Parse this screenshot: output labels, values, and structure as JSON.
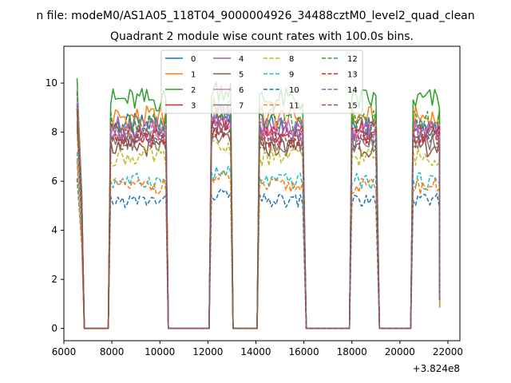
{
  "chart_data": {
    "type": "line",
    "suptitle": "n file: modeM0/AS1A05_118T04_9000004926_34488cztM0_level2_quad_clean",
    "title": "Quadrant 2 module wise count rates with 100.0s bins.",
    "xlabel": "",
    "ylabel": "",
    "x_offset_label": "+3.824e8",
    "xlim": [
      6000,
      22500
    ],
    "ylim": [
      -0.5,
      11.5
    ],
    "xticks": [
      6000,
      8000,
      10000,
      12000,
      14000,
      16000,
      18000,
      20000,
      22000
    ],
    "xtick_labels": [
      "6000",
      "8000",
      "10000",
      "12000",
      "14000",
      "16000",
      "18000",
      "20000",
      "22000"
    ],
    "yticks": [
      0,
      2,
      4,
      6,
      8,
      10
    ],
    "ytick_labels": [
      "0",
      "2",
      "4",
      "6",
      "8",
      "10"
    ],
    "legend": {
      "position": "top-center",
      "ncols": 4
    },
    "segments": [
      {
        "start": 6550,
        "end": 6750,
        "decay": true
      },
      {
        "start": 7950,
        "end": 10250
      },
      {
        "start": 12150,
        "end": 12950
      },
      {
        "start": 14150,
        "end": 16000
      },
      {
        "start": 18000,
        "end": 19050
      },
      {
        "start": 20550,
        "end": 21650
      }
    ],
    "series": [
      {
        "name": "0",
        "color": "#1f77b4",
        "dash": "solid",
        "level": 8.3
      },
      {
        "name": "1",
        "color": "#ff7f0e",
        "dash": "solid",
        "level": 8.6
      },
      {
        "name": "2",
        "color": "#2ca02c",
        "dash": "solid",
        "level": 9.3
      },
      {
        "name": "3",
        "color": "#d62728",
        "dash": "solid",
        "level": 8.0
      },
      {
        "name": "4",
        "color": "#9467bd",
        "dash": "solid",
        "level": 8.2
      },
      {
        "name": "5",
        "color": "#8c564b",
        "dash": "solid",
        "level": 7.4
      },
      {
        "name": "6",
        "color": "#e377c2",
        "dash": "solid",
        "level": 8.1
      },
      {
        "name": "7",
        "color": "#7f7f7f",
        "dash": "solid",
        "level": 7.6
      },
      {
        "name": "8",
        "color": "#bcbd22",
        "dash": "dashed",
        "level": 7.0
      },
      {
        "name": "9",
        "color": "#17becf",
        "dash": "dashed",
        "level": 6.0
      },
      {
        "name": "10",
        "color": "#1f77b4",
        "dash": "dashed",
        "level": 5.2
      },
      {
        "name": "11",
        "color": "#ff7f0e",
        "dash": "dashed",
        "level": 5.8
      },
      {
        "name": "12",
        "color": "#2ca02c",
        "dash": "dashed",
        "level": 8.4
      },
      {
        "name": "13",
        "color": "#d62728",
        "dash": "dashed",
        "level": 7.8
      },
      {
        "name": "14",
        "color": "#9467bd",
        "dash": "dashed",
        "level": 8.0
      },
      {
        "name": "15",
        "color": "#8c564b",
        "dash": "dashed",
        "level": 7.7
      }
    ]
  }
}
